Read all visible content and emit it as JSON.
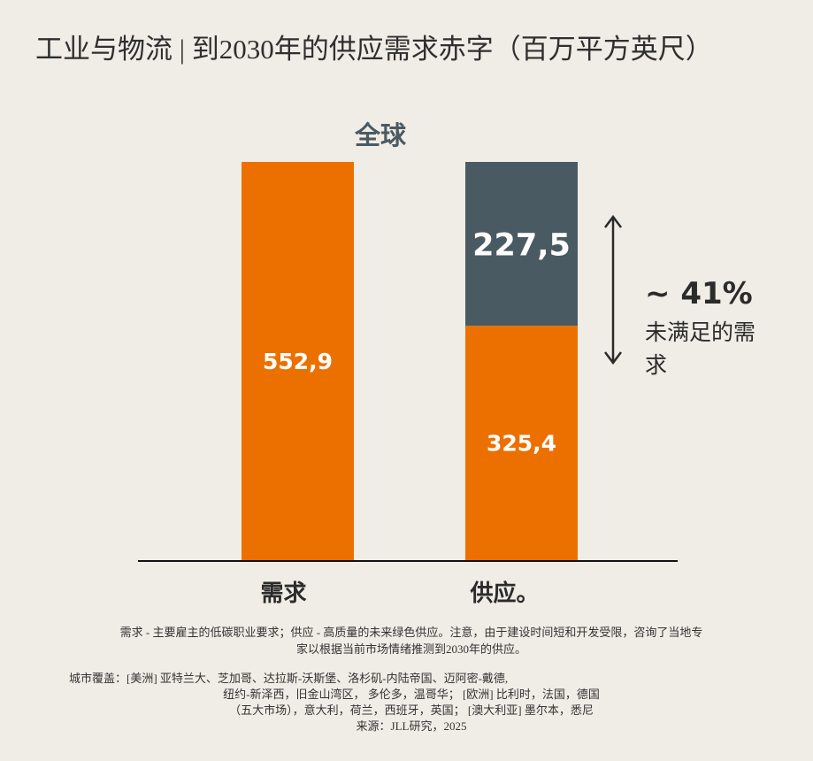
{
  "title": "工业与物流 | 到2030年的供应需求赤字（百万平方英尺）",
  "colors": {
    "background": "#f0ede6",
    "orange": "#ec7000",
    "slate": "#4a5a63",
    "baseline": "#111111",
    "text_dark": "#2b2b2b"
  },
  "chart_data": {
    "type": "bar",
    "stacked": true,
    "title": "全球",
    "categories": [
      "需求",
      "供应。"
    ],
    "series": [
      {
        "values": [
          552.9,
          325.4
        ],
        "labels": [
          "552,9",
          "325,4"
        ],
        "color": "#ec7000"
      },
      {
        "values": [
          0,
          227.5
        ],
        "labels": [
          "",
          "227,5"
        ],
        "color": "#4a5a63"
      }
    ],
    "ylim": [
      0,
      552.9
    ],
    "grid": false,
    "legend": "none",
    "annotation": {
      "value": "~ 41%",
      "text_line1": "未满足的需",
      "text_line2": "求",
      "arrow": "double-vertical"
    }
  },
  "notes": {
    "definition_line1": "需求 - 主要雇主的低碳职业要求；供应 - 高质量的未来绿色供应。注意，由于建设时间短和开发受限，咨询了当地专",
    "definition_line2": "家以根据当前市场情绪推测到2030年的供应。",
    "coverage_line1": "城市覆盖：[美洲] 亚特兰大、芝加哥、达拉斯-沃斯堡、洛杉矶-内陆帝国、迈阿密-戴德,",
    "coverage_line2": "纽约-新泽西，旧金山湾区， 多伦多，温哥华； [欧洲] 比利时，法国，德国",
    "coverage_line3": "（五大市场），意大利，荷兰，西班牙，英国； [澳大利亚] 墨尔本，悉尼",
    "source": "来源：JLL研究，2025"
  }
}
